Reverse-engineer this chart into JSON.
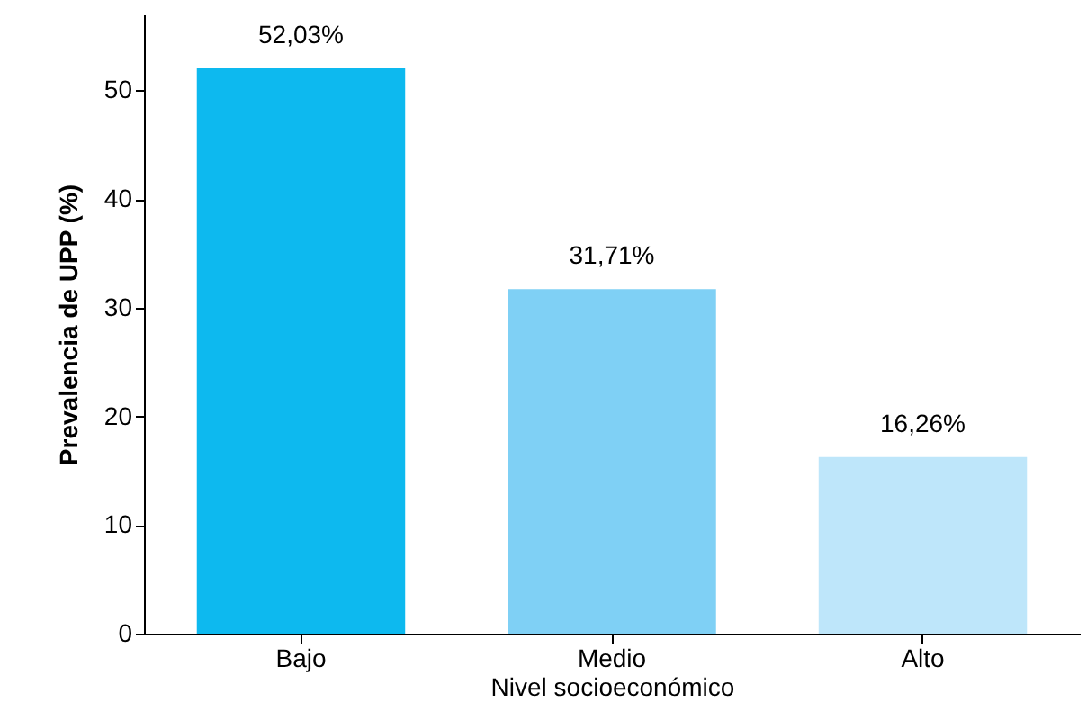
{
  "chart_data": {
    "type": "bar",
    "xlabel": "Nivel socioeconómico",
    "ylabel": "Prevalencia de UPP (%)",
    "categories": [
      "Bajo",
      "Medio",
      "Alto"
    ],
    "values": [
      52.03,
      31.71,
      16.26
    ],
    "colors": [
      "#0db9ef",
      "#7fd0f5",
      "#bee6fa"
    ],
    "value_labels": [
      "52,03%",
      "31,71%",
      "16,26%"
    ],
    "ylim": [
      0,
      57
    ],
    "yticks": [
      0,
      10,
      20,
      30,
      40,
      50
    ],
    "grid": false
  }
}
